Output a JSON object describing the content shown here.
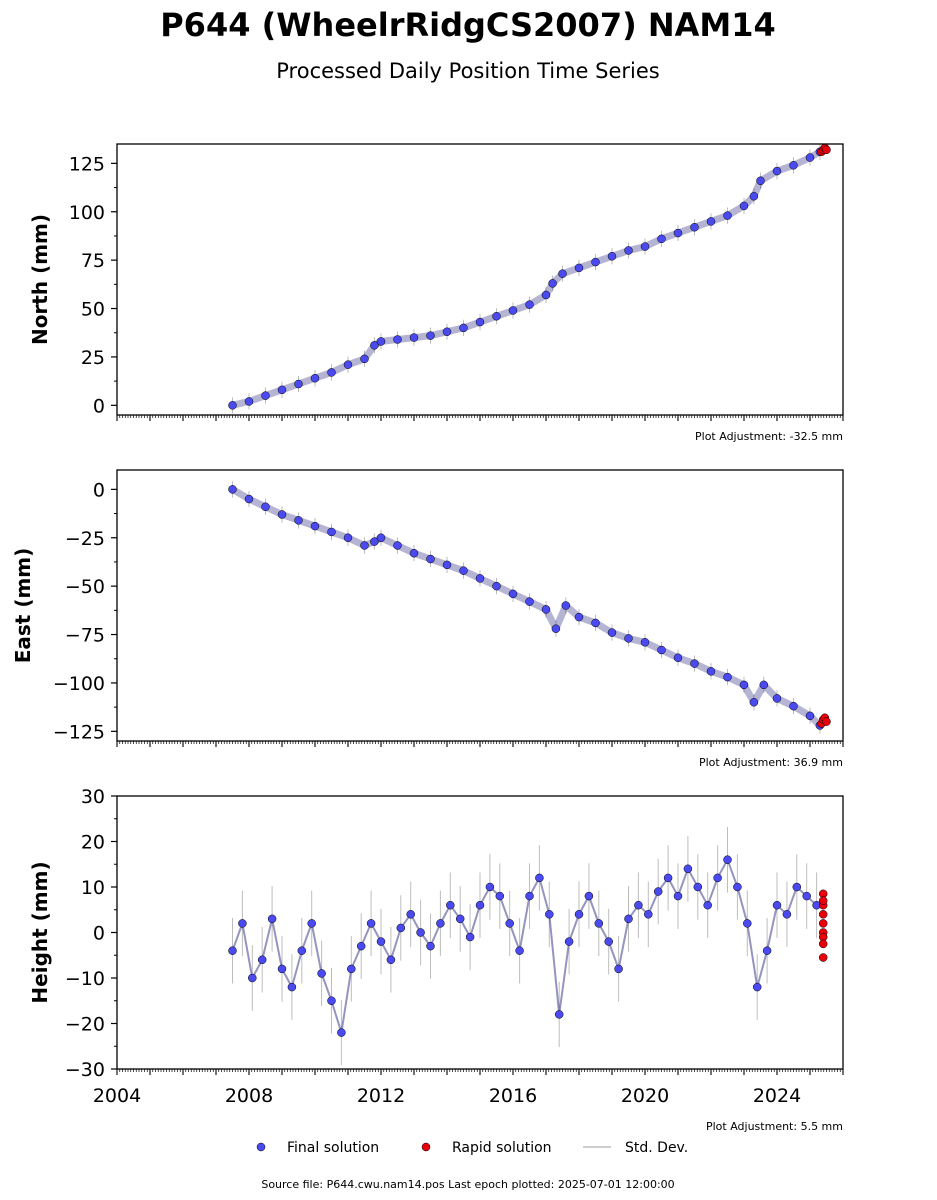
{
  "title": "P644 (WheelrRidgCS2007) NAM14",
  "subtitle": "Processed Daily Position Time Series",
  "footer": "Source file: P644.cwu.nam14.pos  Last epoch plotted: 2025-07-01 12:00:00",
  "legend": {
    "final": "Final solution",
    "rapid": "Rapid solution",
    "stddev": "Std. Dev."
  },
  "colors": {
    "final": "#4a4af0",
    "rapid": "#e8000b",
    "stddev": "#bdbdbd",
    "outline": "#000000"
  },
  "chart_data": [
    {
      "type": "scatter",
      "ylabel": "North (mm)",
      "adjustment": "Plot Adjustment: -32.5 mm",
      "xlim": [
        2004,
        2026
      ],
      "ylim": [
        -5,
        135
      ],
      "yticks": [
        0,
        25,
        50,
        75,
        100,
        125
      ],
      "yticklabels": [
        "0",
        "25",
        "50",
        "75",
        "100",
        "125"
      ],
      "series": [
        {
          "kind": "final",
          "x": [
            2007.5,
            2008.0,
            2008.5,
            2009.0,
            2009.5,
            2010.0,
            2010.5,
            2011.0,
            2011.5,
            2011.8,
            2012.0,
            2012.5,
            2013.0,
            2013.5,
            2014.0,
            2014.5,
            2015.0,
            2015.5,
            2016.0,
            2016.5,
            2017.0,
            2017.2,
            2017.5,
            2018.0,
            2018.5,
            2019.0,
            2019.5,
            2020.0,
            2020.5,
            2021.0,
            2021.5,
            2022.0,
            2022.5,
            2023.0,
            2023.3,
            2023.5,
            2024.0,
            2024.5,
            2025.0,
            2025.3
          ],
          "y": [
            0,
            2,
            5,
            8,
            11,
            14,
            17,
            21,
            24,
            31,
            33,
            34,
            35,
            36,
            38,
            40,
            43,
            46,
            49,
            52,
            57,
            63,
            68,
            71,
            74,
            77,
            80,
            82,
            86,
            89,
            92,
            95,
            98,
            103,
            108,
            116,
            121,
            124,
            128,
            131
          ]
        },
        {
          "kind": "rapid",
          "x": [
            2025.35,
            2025.4,
            2025.45,
            2025.5
          ],
          "y": [
            131,
            132,
            133,
            132
          ]
        }
      ]
    },
    {
      "type": "scatter",
      "ylabel": "East (mm)",
      "adjustment": "Plot Adjustment: 36.9 mm",
      "xlim": [
        2004,
        2026
      ],
      "ylim": [
        -130,
        10
      ],
      "yticks": [
        0,
        -25,
        -50,
        -75,
        -100,
        -125
      ],
      "yticklabels": [
        "0",
        "−25",
        "−50",
        "−75",
        "−100",
        "−125"
      ],
      "series": [
        {
          "kind": "final",
          "x": [
            2007.5,
            2008.0,
            2008.5,
            2009.0,
            2009.5,
            2010.0,
            2010.5,
            2011.0,
            2011.5,
            2011.8,
            2012.0,
            2012.5,
            2013.0,
            2013.5,
            2014.0,
            2014.5,
            2015.0,
            2015.5,
            2016.0,
            2016.5,
            2017.0,
            2017.3,
            2017.6,
            2018.0,
            2018.5,
            2019.0,
            2019.5,
            2020.0,
            2020.5,
            2021.0,
            2021.5,
            2022.0,
            2022.5,
            2023.0,
            2023.3,
            2023.6,
            2024.0,
            2024.5,
            2025.0,
            2025.3
          ],
          "y": [
            0,
            -5,
            -9,
            -13,
            -16,
            -19,
            -22,
            -25,
            -29,
            -27,
            -25,
            -29,
            -33,
            -36,
            -39,
            -42,
            -46,
            -50,
            -54,
            -58,
            -62,
            -72,
            -60,
            -66,
            -69,
            -74,
            -77,
            -79,
            -83,
            -87,
            -90,
            -94,
            -97,
            -101,
            -110,
            -101,
            -108,
            -112,
            -117,
            -122
          ]
        },
        {
          "kind": "rapid",
          "x": [
            2025.35,
            2025.4,
            2025.45,
            2025.5
          ],
          "y": [
            -121,
            -119,
            -118,
            -120
          ]
        }
      ]
    },
    {
      "type": "scatter",
      "ylabel": "Height (mm)",
      "adjustment": "Plot Adjustment: 5.5 mm",
      "xlim": [
        2004,
        2026
      ],
      "ylim": [
        -30,
        30
      ],
      "xticks": [
        2004,
        2008,
        2012,
        2016,
        2020,
        2024
      ],
      "xticklabels": [
        "2004",
        "2008",
        "2012",
        "2016",
        "2020",
        "2024"
      ],
      "yticks": [
        30,
        20,
        10,
        0,
        -10,
        -20,
        -30
      ],
      "yticklabels": [
        "30",
        "20",
        "10",
        "0",
        "−10",
        "−20",
        "−30"
      ],
      "series": [
        {
          "kind": "final",
          "x": [
            2007.5,
            2007.8,
            2008.1,
            2008.4,
            2008.7,
            2009.0,
            2009.3,
            2009.6,
            2009.9,
            2010.2,
            2010.5,
            2010.8,
            2011.1,
            2011.4,
            2011.7,
            2012.0,
            2012.3,
            2012.6,
            2012.9,
            2013.2,
            2013.5,
            2013.8,
            2014.1,
            2014.4,
            2014.7,
            2015.0,
            2015.3,
            2015.6,
            2015.9,
            2016.2,
            2016.5,
            2016.8,
            2017.1,
            2017.4,
            2017.7,
            2018.0,
            2018.3,
            2018.6,
            2018.9,
            2019.2,
            2019.5,
            2019.8,
            2020.1,
            2020.4,
            2020.7,
            2021.0,
            2021.3,
            2021.6,
            2021.9,
            2022.2,
            2022.5,
            2022.8,
            2023.1,
            2023.4,
            2023.7,
            2024.0,
            2024.3,
            2024.6,
            2024.9,
            2025.2
          ],
          "y": [
            -4,
            2,
            -10,
            -6,
            3,
            -8,
            -12,
            -4,
            2,
            -9,
            -15,
            -22,
            -8,
            -3,
            2,
            -2,
            -6,
            1,
            4,
            0,
            -3,
            2,
            6,
            3,
            -1,
            6,
            10,
            8,
            2,
            -4,
            8,
            12,
            4,
            -18,
            -2,
            4,
            8,
            2,
            -2,
            -8,
            3,
            6,
            4,
            9,
            12,
            8,
            14,
            10,
            6,
            12,
            16,
            10,
            2,
            -12,
            -4,
            6,
            4,
            10,
            8,
            6
          ]
        },
        {
          "kind": "rapid",
          "x": [
            2025.4,
            2025.4,
            2025.4,
            2025.4,
            2025.4,
            2025.4,
            2025.4,
            2025.4,
            2025.4
          ],
          "y": [
            8.5,
            6,
            4,
            2,
            0,
            -1,
            -2.5,
            -5.5,
            7
          ]
        }
      ]
    }
  ]
}
